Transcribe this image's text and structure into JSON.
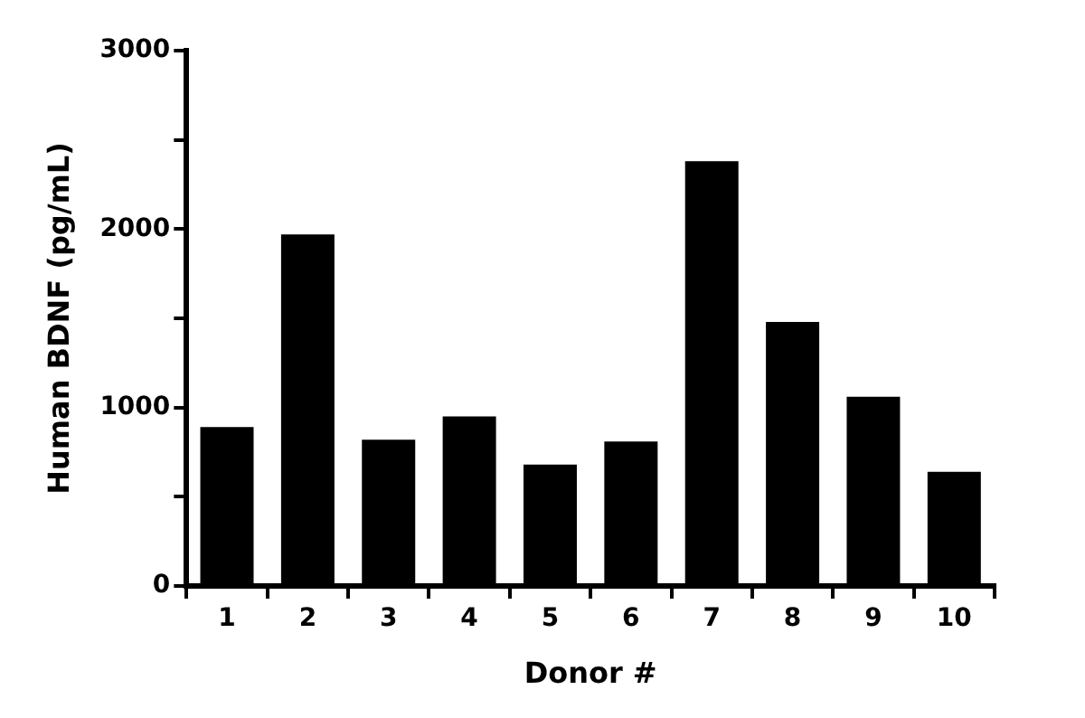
{
  "chart_data": {
    "type": "bar",
    "xlabel": "Donor #",
    "ylabel": "Human BDNF (pg/mL)",
    "categories": [
      "1",
      "2",
      "3",
      "4",
      "5",
      "6",
      "7",
      "8",
      "9",
      "10"
    ],
    "values": [
      890,
      1970,
      820,
      950,
      680,
      810,
      2380,
      1480,
      1060,
      640
    ],
    "color": "#000000",
    "ylim": [
      0,
      3000
    ],
    "yticks": [
      0,
      {
        "value": 500,
        "label": null
      },
      1000,
      {
        "value": 1500,
        "label": null
      },
      2000,
      {
        "value": 2500,
        "label": null
      },
      3000
    ],
    "grid": false,
    "legend": false
  }
}
